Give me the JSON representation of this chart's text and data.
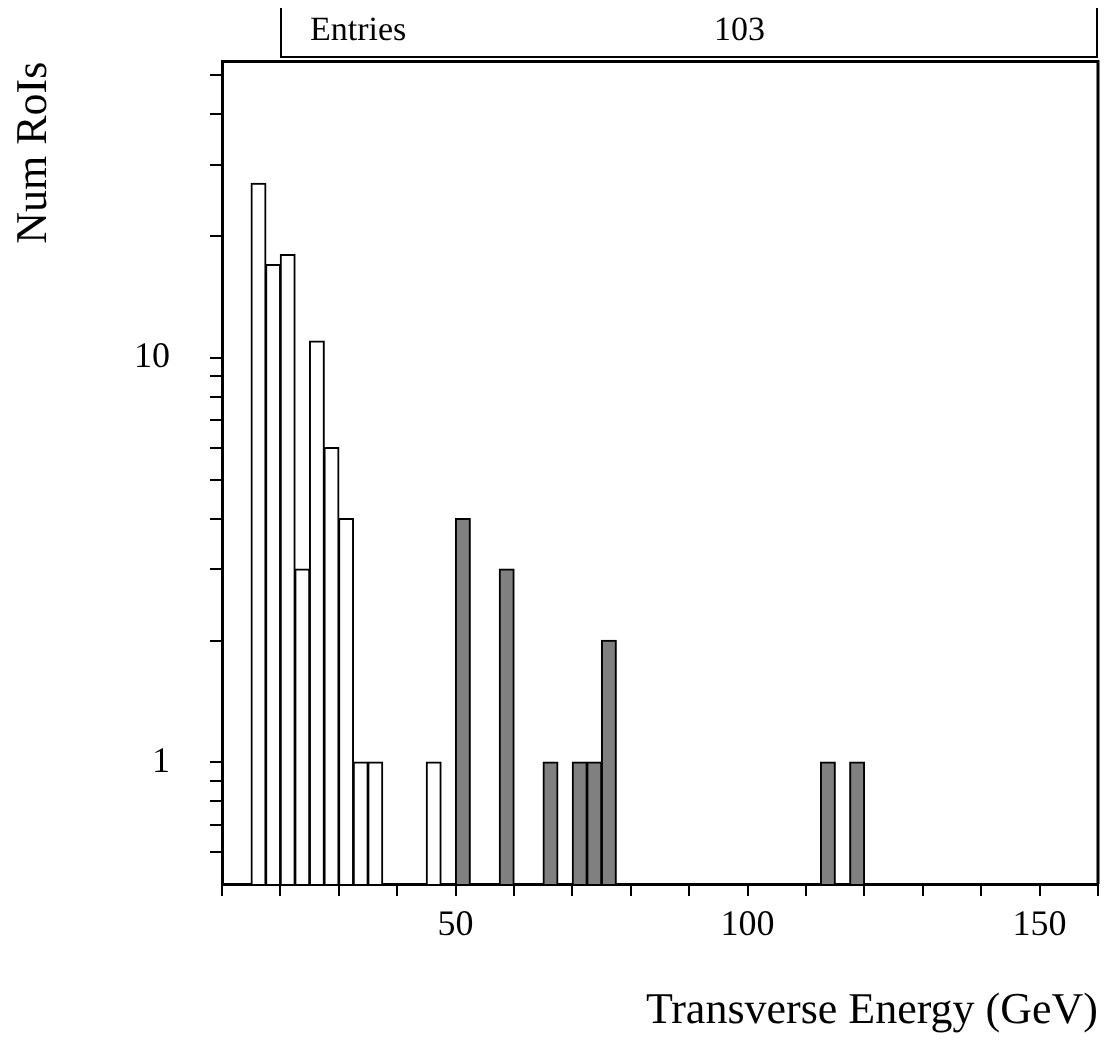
{
  "chart_data": {
    "type": "histogram",
    "xlabel": "Transverse Energy (GeV)",
    "ylabel": "Num RoIs",
    "annotations": [
      "Entries",
      "103"
    ],
    "bins": [
      15,
      17.5,
      20,
      22.5,
      25,
      27.5,
      30,
      32.5,
      35,
      37.5,
      40,
      42.5,
      45,
      47.5,
      50,
      52.5,
      55,
      57.5,
      60,
      62.5,
      65,
      67.5,
      70,
      72.5,
      75,
      77.5,
      80,
      82.5,
      85,
      87.5,
      90,
      92.5,
      95,
      97.5,
      100,
      102.5,
      105,
      107.5,
      110,
      112.5,
      115,
      117.5,
      120
    ],
    "series": [
      {
        "color": "#ffffff",
        "values": [
          27,
          17,
          18,
          3,
          11,
          6,
          4,
          1,
          1,
          null,
          null,
          null,
          1,
          null,
          null,
          null,
          null,
          null,
          null,
          null,
          null,
          null,
          null,
          null,
          null,
          null,
          null,
          null,
          null,
          null,
          null,
          null,
          null,
          null,
          null,
          null,
          null,
          null,
          null,
          null,
          null,
          null
        ]
      },
      {
        "color": "#808080",
        "values": [
          null,
          null,
          null,
          null,
          null,
          null,
          null,
          null,
          null,
          null,
          null,
          null,
          null,
          null,
          4,
          null,
          null,
          3,
          null,
          null,
          1,
          null,
          1,
          1,
          2,
          null,
          null,
          null,
          null,
          null,
          null,
          null,
          null,
          null,
          null,
          null,
          null,
          null,
          null,
          1,
          null,
          1
        ]
      }
    ],
    "log": true,
    "grid": false,
    "legend": false,
    "xlim": [
      10,
      160
    ],
    "xticks": [
      {
        "value": 10,
        "label": null
      },
      {
        "value": 20,
        "label": null
      },
      {
        "value": 30,
        "label": null
      },
      {
        "value": 40,
        "label": null
      },
      50,
      {
        "value": 60,
        "label": null
      },
      {
        "value": 70,
        "label": null
      },
      {
        "value": 80,
        "label": null
      },
      {
        "value": 90,
        "label": null
      },
      100,
      {
        "value": 110,
        "label": null
      },
      {
        "value": 120,
        "label": null
      },
      {
        "value": 130,
        "label": null
      },
      {
        "value": 140,
        "label": null
      },
      150,
      {
        "value": 160,
        "label": null
      }
    ],
    "ylim": [
      0.5,
      54
    ],
    "yticks": [
      {
        "value": 0.6,
        "label": null
      },
      {
        "value": 0.7,
        "label": null
      },
      {
        "value": 0.8,
        "label": null
      },
      {
        "value": 0.9,
        "label": null
      },
      1,
      {
        "value": 2,
        "label": null
      },
      {
        "value": 3,
        "label": null
      },
      {
        "value": 4,
        "label": null
      },
      {
        "value": 5,
        "label": null
      },
      {
        "value": 6,
        "label": null
      },
      {
        "value": 7,
        "label": null
      },
      {
        "value": 8,
        "label": null
      },
      {
        "value": 9,
        "label": null
      },
      10,
      {
        "value": 20,
        "label": null
      },
      {
        "value": 30,
        "label": null
      },
      {
        "value": 40,
        "label": null
      },
      {
        "value": 50,
        "label": null
      }
    ]
  }
}
